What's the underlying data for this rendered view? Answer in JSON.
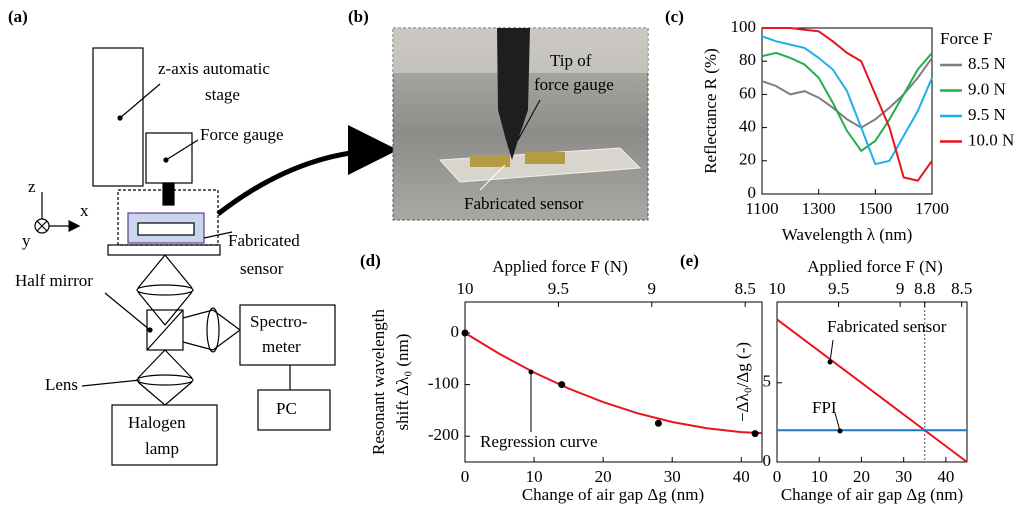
{
  "diagram": {
    "label": "(a)",
    "stage": [
      "z-axis automatic",
      "stage"
    ],
    "force_gauge": "Force gauge",
    "axes": {
      "z": "z",
      "x": "x",
      "y": "y"
    },
    "sensor": [
      "Fabricated",
      "sensor"
    ],
    "half_mirror": "Half mirror",
    "lens": "Lens",
    "spectrometer": [
      "Spectro-",
      "meter"
    ],
    "pc": "PC",
    "lamp": [
      "Halogen",
      "lamp"
    ]
  },
  "photo": {
    "label": "(b)",
    "tip": [
      "Tip of",
      "force gauge"
    ],
    "sensor": "Fabricated sensor"
  },
  "chart_data": [
    {
      "type": "line",
      "label": "(c)",
      "x_label": "Wavelength λ (nm)",
      "y_label": "Reflectance R (%)",
      "legend_title": "Force F",
      "legend": "right",
      "x": [
        1100,
        1150,
        1200,
        1250,
        1300,
        1350,
        1400,
        1450,
        1500,
        1550,
        1600,
        1650,
        1700
      ],
      "xlim": [
        1100,
        1700
      ],
      "xticks": [
        1100,
        1300,
        1500,
        1700
      ],
      "ylim": [
        0,
        100
      ],
      "yticks": [
        0,
        20,
        40,
        60,
        80,
        100
      ],
      "series": [
        {
          "name": "8.5 N",
          "color": "#7f7f7f",
          "values": [
            68,
            65,
            60,
            62,
            58,
            52,
            45,
            40,
            45,
            52,
            60,
            70,
            82
          ]
        },
        {
          "name": "9.0 N",
          "color": "#22b04a",
          "values": [
            83,
            85,
            82,
            78,
            70,
            55,
            38,
            26,
            32,
            45,
            60,
            75,
            85
          ]
        },
        {
          "name": "9.5 N",
          "color": "#1fb0e6",
          "values": [
            95,
            92,
            90,
            88,
            82,
            75,
            62,
            40,
            18,
            20,
            35,
            50,
            70
          ]
        },
        {
          "name": "10.0 N",
          "color": "#e8141e",
          "values": [
            100,
            100,
            100,
            99,
            98,
            92,
            85,
            80,
            60,
            40,
            10,
            8,
            20
          ]
        }
      ]
    },
    {
      "type": "line",
      "label": "(d)",
      "x_label": "Change of air gap Δg (nm)",
      "y_label": [
        "Resonant wavelength",
        "shift Δλ₀ (nm)"
      ],
      "x2_label": "Applied force F (N)",
      "annotation": "Regression curve",
      "xlim": [
        0,
        43
      ],
      "xticks": [
        0,
        10,
        20,
        30,
        40
      ],
      "ylim": [
        -250,
        60
      ],
      "yticks": [
        0,
        -100,
        -200
      ],
      "x2lim": [
        10,
        8.41
      ],
      "x2ticks": [
        10,
        9.5,
        9,
        8.5
      ],
      "series": [
        {
          "type": "line",
          "color": "#e8141e",
          "x": [
            0,
            5,
            10,
            15,
            20,
            25,
            30,
            35,
            40,
            43
          ],
          "values": [
            0,
            -40.6,
            -76.5,
            -107.6,
            -134,
            -155.6,
            -172.5,
            -184.6,
            -192,
            -194.1
          ]
        },
        {
          "type": "scatter",
          "color": "#000000",
          "x": [
            0,
            14,
            28,
            42
          ],
          "values": [
            0,
            -100,
            -175,
            -195
          ]
        }
      ]
    },
    {
      "type": "line",
      "label": "(e)",
      "x_label": "Change of air gap Δg (nm)",
      "y_label": "−Δλ₀/Δg (-)",
      "x2_label": "Applied force F (N)",
      "annotations": [
        "Fabricated sensor",
        "FPI"
      ],
      "xlim": [
        0,
        45
      ],
      "xticks": [
        0,
        10,
        20,
        30,
        40
      ],
      "ylim": [
        0,
        10.1
      ],
      "yticks": [
        0,
        5
      ],
      "x2lim": [
        10,
        8.457
      ],
      "x2ticks": [
        10,
        9.5,
        9,
        8.8,
        8.5
      ],
      "highlight": {
        "x2tick": 3,
        "color": "#e8141e"
      },
      "series": [
        {
          "type": "line",
          "color": "#e8141e",
          "x": [
            0,
            45
          ],
          "values": [
            9,
            0
          ]
        },
        {
          "type": "line",
          "color": "#1f77c4",
          "x": [
            0,
            45
          ],
          "values": [
            2,
            2
          ]
        }
      ]
    }
  ]
}
